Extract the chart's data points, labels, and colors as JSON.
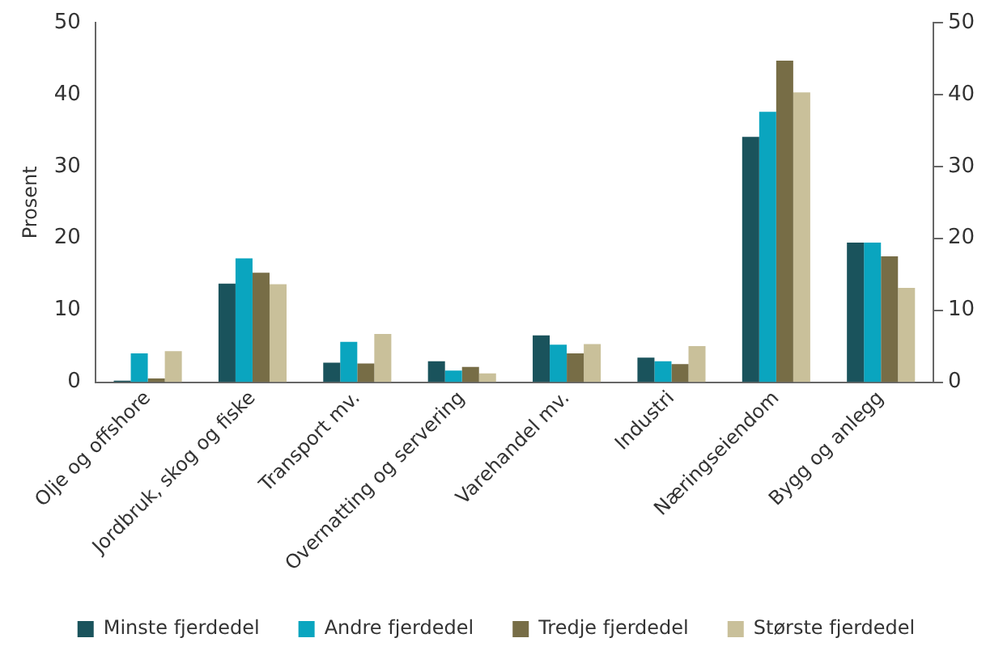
{
  "chart_data": {
    "type": "bar",
    "ylabel": "Prosent",
    "categories": [
      "Olje og offshore",
      "Jordbruk, skog og fiske",
      "Transport mv.",
      "Overnatting og servering",
      "Varehandel mv.",
      "Industri",
      "Næringseiendom",
      "Bygg og anlegg"
    ],
    "series": [
      {
        "name": "Minste fjerdedel",
        "color": "#1a535c",
        "values": [
          0.2,
          13.7,
          2.7,
          2.9,
          6.5,
          3.4,
          34.1,
          19.4
        ]
      },
      {
        "name": "Andre fjerdedel",
        "color": "#0aa5bf",
        "values": [
          4.0,
          17.2,
          5.6,
          1.6,
          5.2,
          2.9,
          37.6,
          19.4
        ]
      },
      {
        "name": "Tredje fjerdedel",
        "color": "#776d46",
        "values": [
          0.5,
          15.2,
          2.6,
          2.1,
          4.0,
          2.5,
          44.7,
          17.5
        ]
      },
      {
        "name": "Største fjerdedel",
        "color": "#c9c09a",
        "values": [
          4.3,
          13.6,
          6.7,
          1.2,
          5.3,
          5.0,
          40.3,
          13.1
        ]
      }
    ],
    "ylim": [
      0,
      50
    ],
    "yticks": [
      0,
      10,
      20,
      30,
      40,
      50
    ],
    "y2lim": [
      0,
      50
    ],
    "y2ticks": [
      0,
      10,
      20,
      30,
      40,
      50
    ],
    "grid": false,
    "legend": "bottom"
  }
}
